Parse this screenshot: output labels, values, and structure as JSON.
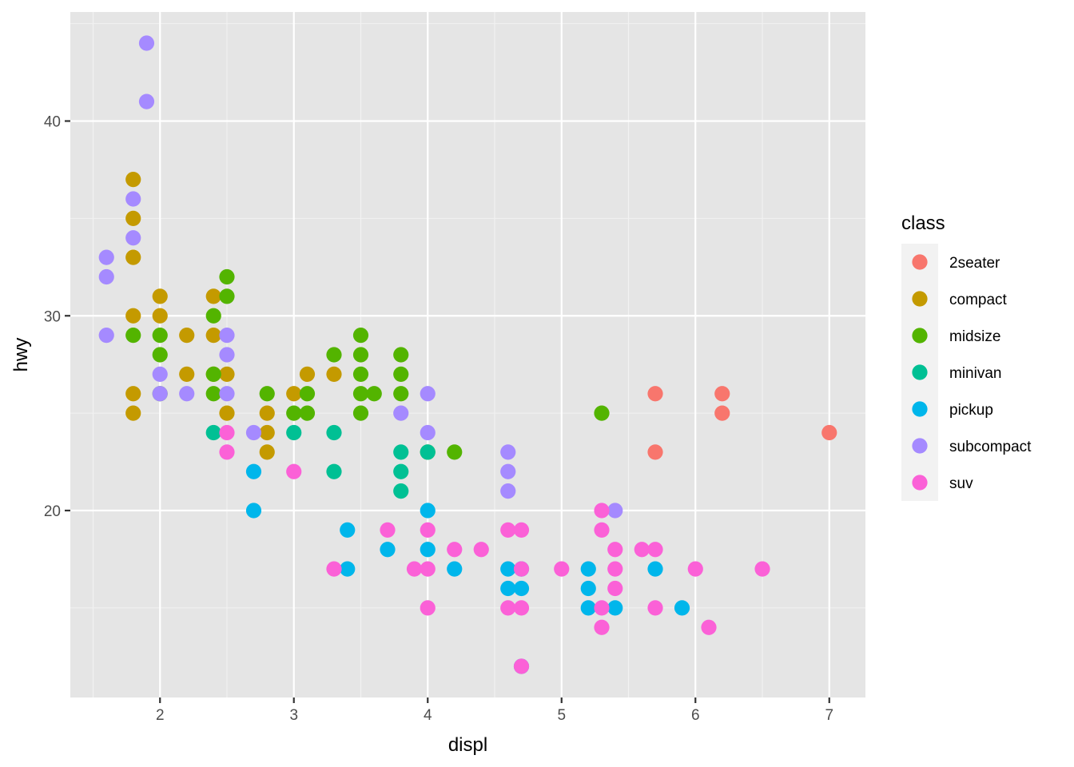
{
  "chart_data": {
    "type": "scatter",
    "title": "",
    "xlabel": "displ",
    "ylabel": "hwy",
    "xlim": [
      1.33,
      7.27
    ],
    "ylim": [
      10.4,
      45.6
    ],
    "x_ticks": [
      2,
      3,
      4,
      5,
      6,
      7
    ],
    "y_ticks": [
      20,
      30,
      40
    ],
    "grid": true,
    "background": "#e5e5e5",
    "legend": {
      "title": "class",
      "placement": "right"
    },
    "series": [
      {
        "name": "2seater",
        "color": "#F8766D",
        "points": [
          [
            5.7,
            26
          ],
          [
            5.7,
            23
          ],
          [
            6.2,
            26
          ],
          [
            6.2,
            25
          ],
          [
            7.0,
            24
          ]
        ]
      },
      {
        "name": "compact",
        "color": "#C49A00",
        "points": [
          [
            1.8,
            37
          ],
          [
            1.8,
            35
          ],
          [
            1.8,
            33
          ],
          [
            1.8,
            30
          ],
          [
            1.8,
            26
          ],
          [
            1.8,
            25
          ],
          [
            2.0,
            31
          ],
          [
            2.0,
            30
          ],
          [
            2.2,
            29
          ],
          [
            2.2,
            27
          ],
          [
            2.4,
            31
          ],
          [
            2.4,
            29
          ],
          [
            2.4,
            27
          ],
          [
            2.5,
            27
          ],
          [
            2.5,
            25
          ],
          [
            2.8,
            25
          ],
          [
            2.8,
            24
          ],
          [
            2.8,
            23
          ],
          [
            3.0,
            26
          ],
          [
            3.1,
            27
          ],
          [
            3.3,
            27
          ]
        ]
      },
      {
        "name": "midsize",
        "color": "#53B400",
        "points": [
          [
            1.8,
            29
          ],
          [
            2.0,
            29
          ],
          [
            2.0,
            28
          ],
          [
            2.0,
            26
          ],
          [
            2.4,
            30
          ],
          [
            2.4,
            27
          ],
          [
            2.4,
            26
          ],
          [
            2.5,
            32
          ],
          [
            2.5,
            31
          ],
          [
            2.8,
            26
          ],
          [
            3.0,
            25
          ],
          [
            3.1,
            26
          ],
          [
            3.1,
            25
          ],
          [
            3.3,
            28
          ],
          [
            3.5,
            29
          ],
          [
            3.5,
            28
          ],
          [
            3.5,
            27
          ],
          [
            3.5,
            26
          ],
          [
            3.5,
            25
          ],
          [
            3.6,
            26
          ],
          [
            3.8,
            28
          ],
          [
            3.8,
            27
          ],
          [
            3.8,
            26
          ],
          [
            4.0,
            23
          ],
          [
            4.2,
            23
          ],
          [
            5.3,
            25
          ]
        ]
      },
      {
        "name": "minivan",
        "color": "#00C094",
        "points": [
          [
            2.4,
            24
          ],
          [
            3.0,
            24
          ],
          [
            3.3,
            24
          ],
          [
            3.3,
            22
          ],
          [
            3.8,
            23
          ],
          [
            3.8,
            22
          ],
          [
            3.8,
            21
          ],
          [
            4.0,
            23
          ]
        ]
      },
      {
        "name": "pickup",
        "color": "#00B6EB",
        "points": [
          [
            2.7,
            22
          ],
          [
            2.7,
            20
          ],
          [
            3.4,
            19
          ],
          [
            3.4,
            17
          ],
          [
            3.7,
            18
          ],
          [
            4.0,
            20
          ],
          [
            4.0,
            18
          ],
          [
            4.2,
            17
          ],
          [
            4.6,
            17
          ],
          [
            4.6,
            16
          ],
          [
            4.7,
            17
          ],
          [
            4.7,
            16
          ],
          [
            4.7,
            12
          ],
          [
            5.2,
            17
          ],
          [
            5.2,
            16
          ],
          [
            5.2,
            15
          ],
          [
            5.4,
            15
          ],
          [
            5.7,
            17
          ],
          [
            5.9,
            15
          ]
        ]
      },
      {
        "name": "subcompact",
        "color": "#A58AFF",
        "points": [
          [
            1.6,
            33
          ],
          [
            1.6,
            32
          ],
          [
            1.6,
            29
          ],
          [
            1.8,
            36
          ],
          [
            1.8,
            34
          ],
          [
            1.9,
            44
          ],
          [
            1.9,
            41
          ],
          [
            2.0,
            27
          ],
          [
            2.0,
            26
          ],
          [
            2.2,
            26
          ],
          [
            2.5,
            29
          ],
          [
            2.5,
            28
          ],
          [
            2.5,
            26
          ],
          [
            2.7,
            24
          ],
          [
            3.8,
            25
          ],
          [
            4.0,
            26
          ],
          [
            4.0,
            24
          ],
          [
            4.6,
            23
          ],
          [
            4.6,
            22
          ],
          [
            4.6,
            21
          ],
          [
            5.4,
            20
          ]
        ]
      },
      {
        "name": "suv",
        "color": "#FB61D7",
        "points": [
          [
            2.5,
            24
          ],
          [
            2.5,
            23
          ],
          [
            3.0,
            22
          ],
          [
            3.3,
            17
          ],
          [
            3.7,
            19
          ],
          [
            3.9,
            17
          ],
          [
            4.0,
            19
          ],
          [
            4.0,
            17
          ],
          [
            4.0,
            15
          ],
          [
            4.2,
            18
          ],
          [
            4.4,
            18
          ],
          [
            4.6,
            19
          ],
          [
            4.6,
            15
          ],
          [
            4.7,
            19
          ],
          [
            4.7,
            17
          ],
          [
            4.7,
            15
          ],
          [
            4.7,
            12
          ],
          [
            5.0,
            17
          ],
          [
            5.3,
            20
          ],
          [
            5.3,
            19
          ],
          [
            5.3,
            15
          ],
          [
            5.3,
            14
          ],
          [
            5.4,
            18
          ],
          [
            5.4,
            17
          ],
          [
            5.4,
            16
          ],
          [
            5.6,
            18
          ],
          [
            5.7,
            18
          ],
          [
            5.7,
            15
          ],
          [
            6.0,
            17
          ],
          [
            6.1,
            14
          ],
          [
            6.5,
            17
          ]
        ]
      }
    ]
  }
}
